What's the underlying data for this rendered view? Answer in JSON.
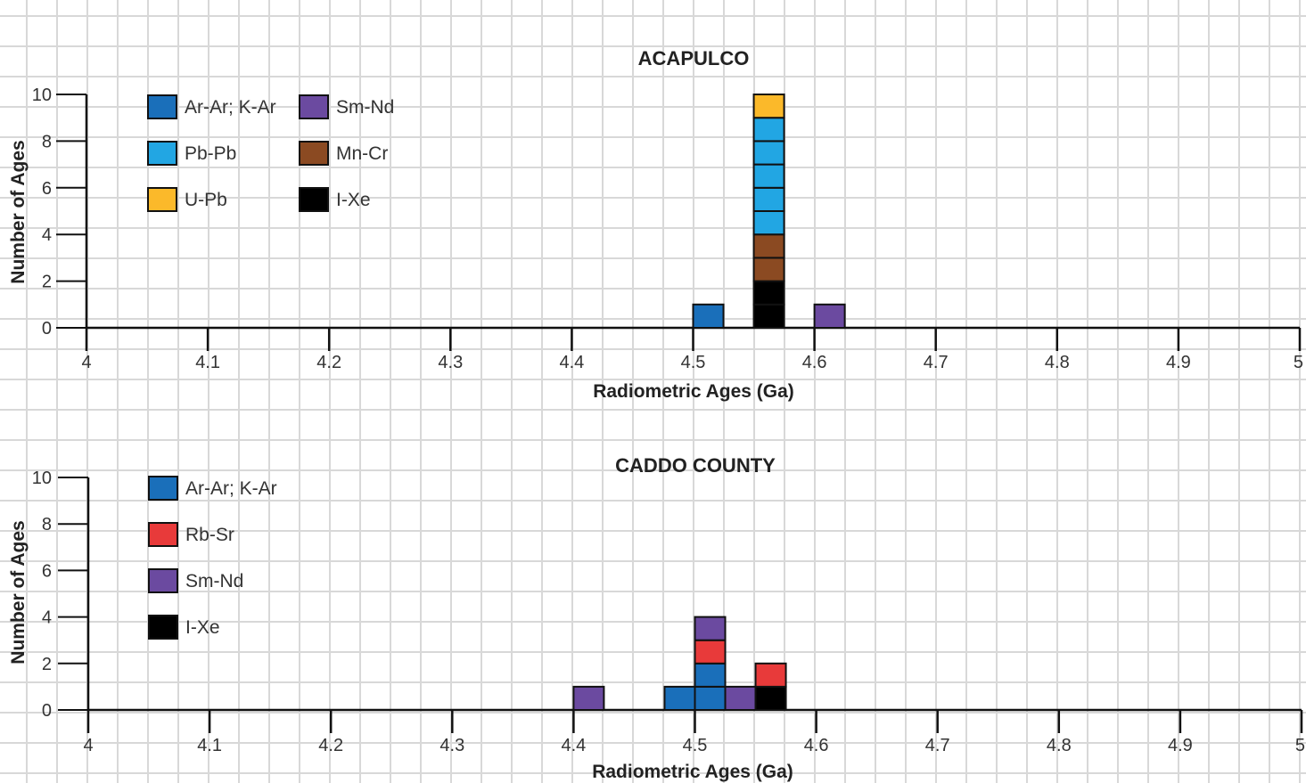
{
  "chart_data": [
    {
      "type": "bar",
      "subtype": "stacked-histogram",
      "title": "ACAPULCO",
      "xlabel": "Radiometric Ages (Ga)",
      "ylabel": "Number of Ages",
      "xlim": [
        4,
        5
      ],
      "ylim": [
        0,
        10
      ],
      "x_ticks": [
        "4",
        "4.1",
        "4.2",
        "4.3",
        "4.4",
        "4.5",
        "4.6",
        "4.7",
        "4.8",
        "4.9",
        "5"
      ],
      "y_ticks": [
        "0",
        "2",
        "4",
        "6",
        "8",
        "10"
      ],
      "bin_width": 0.025,
      "grid": true,
      "legend_position": "top-left",
      "legend": [
        {
          "name": "Ar-Ar; K-Ar",
          "color": "#1a6fba"
        },
        {
          "name": "Sm-Nd",
          "color": "#6b4aa0"
        },
        {
          "name": "Pb-Pb",
          "color": "#22a6e3"
        },
        {
          "name": "Mn-Cr",
          "color": "#8b4a22"
        },
        {
          "name": "U-Pb",
          "color": "#fbb92a"
        },
        {
          "name": "I-Xe",
          "color": "#000000"
        }
      ],
      "bins": [
        {
          "x": 4.5,
          "stack": [
            {
              "method": "Ar-Ar; K-Ar",
              "count": 1
            }
          ]
        },
        {
          "x": 4.55,
          "stack": [
            {
              "method": "I-Xe",
              "count": 2
            },
            {
              "method": "Mn-Cr",
              "count": 2
            },
            {
              "method": "Pb-Pb",
              "count": 5
            },
            {
              "method": "U-Pb",
              "count": 1
            }
          ]
        },
        {
          "x": 4.6,
          "stack": [
            {
              "method": "Sm-Nd",
              "count": 1
            }
          ]
        }
      ]
    },
    {
      "type": "bar",
      "subtype": "stacked-histogram",
      "title": "CADDO COUNTY",
      "xlabel": "Radiometric Ages (Ga)",
      "ylabel": "Number of Ages",
      "xlim": [
        4,
        5
      ],
      "ylim": [
        0,
        10
      ],
      "x_ticks": [
        "4",
        "4.1",
        "4.2",
        "4.3",
        "4.4",
        "4.5",
        "4.6",
        "4.7",
        "4.8",
        "4.9",
        "5"
      ],
      "y_ticks": [
        "0",
        "2",
        "4",
        "6",
        "8",
        "10"
      ],
      "bin_width": 0.025,
      "grid": true,
      "legend_position": "top-left",
      "legend": [
        {
          "name": "Ar-Ar; K-Ar",
          "color": "#1a6fba"
        },
        {
          "name": "Rb-Sr",
          "color": "#e83a3a"
        },
        {
          "name": "Sm-Nd",
          "color": "#6b4aa0"
        },
        {
          "name": "I-Xe",
          "color": "#000000"
        }
      ],
      "bins": [
        {
          "x": 4.4,
          "stack": [
            {
              "method": "Sm-Nd",
              "count": 1
            }
          ]
        },
        {
          "x": 4.475,
          "stack": [
            {
              "method": "Ar-Ar; K-Ar",
              "count": 1
            }
          ]
        },
        {
          "x": 4.5,
          "stack": [
            {
              "method": "Ar-Ar; K-Ar",
              "count": 2
            },
            {
              "method": "Rb-Sr",
              "count": 1
            },
            {
              "method": "Sm-Nd",
              "count": 1
            }
          ]
        },
        {
          "x": 4.525,
          "stack": [
            {
              "method": "Sm-Nd",
              "count": 1
            }
          ]
        },
        {
          "x": 4.55,
          "stack": [
            {
              "method": "I-Xe",
              "count": 1
            },
            {
              "method": "Rb-Sr",
              "count": 1
            }
          ]
        }
      ]
    }
  ]
}
